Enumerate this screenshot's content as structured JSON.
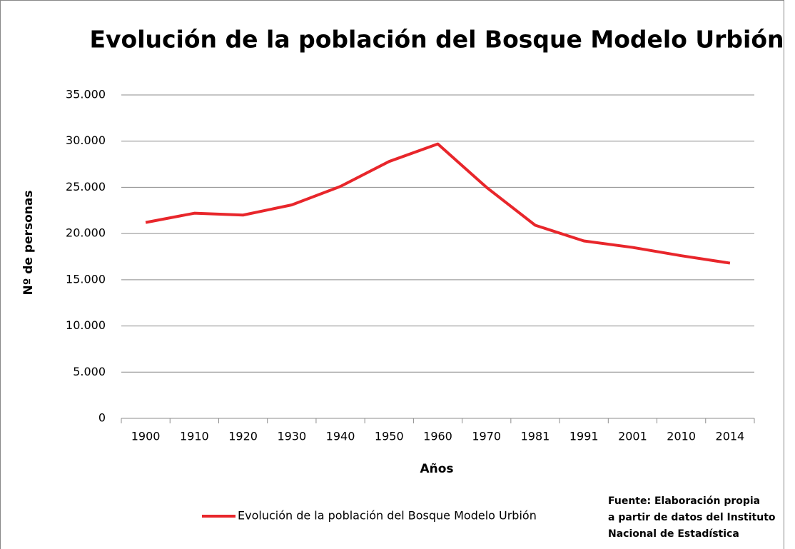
{
  "chart_data": {
    "type": "line",
    "title": "Evolución de la población del Bosque Modelo Urbión",
    "x_label": "Años",
    "y_label": "Nº de personas",
    "categories": [
      "1900",
      "1910",
      "1920",
      "1930",
      "1940",
      "1950",
      "1960",
      "1970",
      "1981",
      "1991",
      "2001",
      "2010",
      "2014"
    ],
    "series": [
      {
        "name": "Evolución de la población del Bosque Modelo Urbión",
        "color": "#e8262b",
        "values": [
          21200,
          22200,
          22000,
          23100,
          25100,
          27800,
          29700,
          25000,
          20900,
          19200,
          18500,
          17600,
          16800
        ]
      }
    ],
    "ylim": [
      0,
      35000
    ],
    "yticks": [
      0,
      {
        "value": 5000,
        "label": "5.000"
      },
      {
        "value": 10000,
        "label": "10.000"
      },
      {
        "value": 15000,
        "label": "15.000"
      },
      {
        "value": 20000,
        "label": "20.000"
      },
      {
        "value": 25000,
        "label": "25.000"
      },
      {
        "value": 30000,
        "label": "30.000"
      },
      {
        "value": 35000,
        "label": "35.000"
      }
    ],
    "grid": true,
    "legend": "bottom",
    "source": [
      "Fuente: Elaboración propia",
      "a partir de datos del Instituto",
      "Nacional de Estadística"
    ]
  }
}
